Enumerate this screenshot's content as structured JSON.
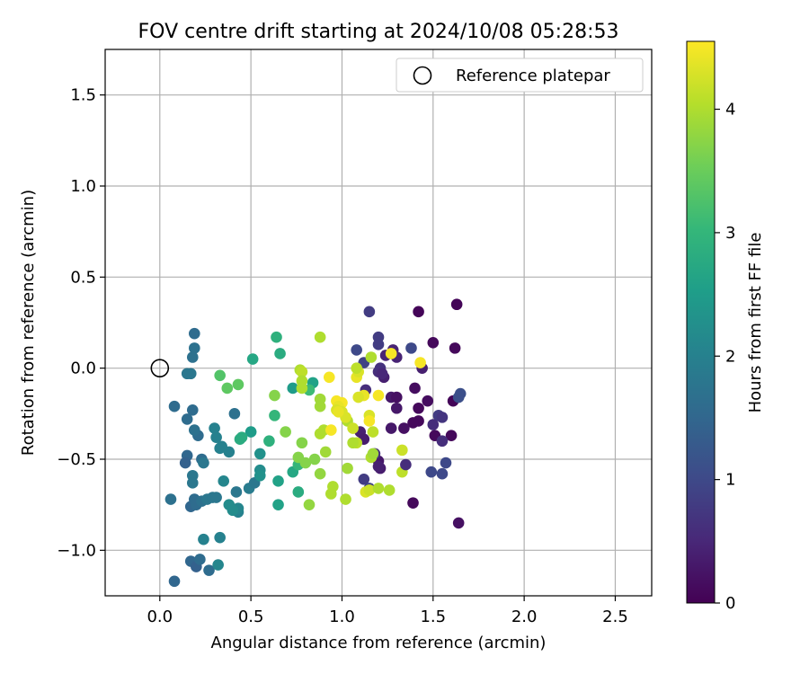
{
  "chart_data": {
    "type": "scatter",
    "title": "FOV centre drift starting at 2024/10/08 05:28:53",
    "xlabel": "Angular distance from reference (arcmin)",
    "ylabel": "Rotation from reference (arcmin)",
    "xlim": [
      -0.3,
      2.7
    ],
    "ylim": [
      -1.25,
      1.75
    ],
    "xticks": [
      0.0,
      0.5,
      1.0,
      1.5,
      2.0,
      2.5
    ],
    "xtick_labels": [
      "0.0",
      "0.5",
      "1.0",
      "1.5",
      "2.0",
      "2.5"
    ],
    "yticks": [
      -1.0,
      -0.5,
      0.0,
      0.5,
      1.0,
      1.5
    ],
    "ytick_labels": [
      "−1.0",
      "−0.5",
      "0.0",
      "0.5",
      "1.0",
      "1.5"
    ],
    "grid": true,
    "legend": {
      "placement": "top-right",
      "entries": [
        {
          "label": "Reference platepar",
          "marker": "open-circle"
        }
      ]
    },
    "reference_point": {
      "x": 0.0,
      "y": 0.0
    },
    "colorbar": {
      "label": "Hours from first FF file",
      "colormap": "viridis",
      "range": [
        0,
        4.55
      ],
      "ticks": [
        0,
        1,
        2,
        3,
        4
      ],
      "tick_labels": [
        "0",
        "1",
        "2",
        "3",
        "4"
      ]
    },
    "colormap_stops": [
      "#440154",
      "#482878",
      "#3e4a89",
      "#31688e",
      "#26828e",
      "#1f9e89",
      "#35b779",
      "#6ece58",
      "#b5de2b",
      "#fde725"
    ],
    "points": [
      {
        "x": 1.42,
        "y": 0.31,
        "c": 0.05
      },
      {
        "x": 1.63,
        "y": 0.35,
        "c": 0.05
      },
      {
        "x": 1.5,
        "y": 0.14,
        "c": 0.1
      },
      {
        "x": 1.62,
        "y": 0.11,
        "c": 0.1
      },
      {
        "x": 1.4,
        "y": -0.11,
        "c": 0.15
      },
      {
        "x": 1.42,
        "y": -0.22,
        "c": 0.1
      },
      {
        "x": 1.42,
        "y": -0.29,
        "c": 0.1
      },
      {
        "x": 1.39,
        "y": -0.3,
        "c": 0.1
      },
      {
        "x": 1.47,
        "y": -0.18,
        "c": 0.15
      },
      {
        "x": 1.51,
        "y": -0.37,
        "c": 0.1
      },
      {
        "x": 1.6,
        "y": -0.37,
        "c": 0.1
      },
      {
        "x": 1.61,
        "y": -0.18,
        "c": 0.05
      },
      {
        "x": 1.39,
        "y": -0.74,
        "c": 0.1
      },
      {
        "x": 1.64,
        "y": -0.85,
        "c": 0.2
      },
      {
        "x": 1.34,
        "y": -0.33,
        "c": 0.2
      },
      {
        "x": 1.3,
        "y": -0.22,
        "c": 0.3
      },
      {
        "x": 1.27,
        "y": -0.16,
        "c": 0.3
      },
      {
        "x": 1.3,
        "y": -0.16,
        "c": 0.2
      },
      {
        "x": 1.27,
        "y": -0.33,
        "c": 0.3
      },
      {
        "x": 1.2,
        "y": -0.51,
        "c": 0.3
      },
      {
        "x": 1.21,
        "y": -0.55,
        "c": 0.35
      },
      {
        "x": 1.1,
        "y": -0.35,
        "c": 0.4
      },
      {
        "x": 1.12,
        "y": -0.39,
        "c": 0.35
      },
      {
        "x": 1.23,
        "y": -0.05,
        "c": 0.4
      },
      {
        "x": 1.24,
        "y": 0.07,
        "c": 0.45
      },
      {
        "x": 1.28,
        "y": 0.1,
        "c": 0.45
      },
      {
        "x": 1.3,
        "y": 0.06,
        "c": 0.45
      },
      {
        "x": 1.44,
        "y": 0.0,
        "c": 0.4
      },
      {
        "x": 1.2,
        "y": -0.02,
        "c": 0.6
      },
      {
        "x": 1.21,
        "y": 0.0,
        "c": 0.65
      },
      {
        "x": 1.22,
        "y": -0.03,
        "c": 0.5
      },
      {
        "x": 1.13,
        "y": -0.12,
        "c": 0.6
      },
      {
        "x": 1.15,
        "y": 0.31,
        "c": 0.8
      },
      {
        "x": 1.2,
        "y": 0.17,
        "c": 0.8
      },
      {
        "x": 1.2,
        "y": 0.13,
        "c": 0.8
      },
      {
        "x": 1.08,
        "y": 0.1,
        "c": 1.0
      },
      {
        "x": 1.12,
        "y": 0.03,
        "c": 0.9
      },
      {
        "x": 1.38,
        "y": 0.11,
        "c": 1.0
      },
      {
        "x": 1.53,
        "y": -0.26,
        "c": 0.8
      },
      {
        "x": 1.55,
        "y": -0.27,
        "c": 0.7
      },
      {
        "x": 1.5,
        "y": -0.31,
        "c": 0.6
      },
      {
        "x": 1.55,
        "y": -0.4,
        "c": 0.6
      },
      {
        "x": 1.57,
        "y": -0.52,
        "c": 1.0
      },
      {
        "x": 1.55,
        "y": -0.58,
        "c": 1.0
      },
      {
        "x": 1.49,
        "y": -0.57,
        "c": 1.0
      },
      {
        "x": 1.65,
        "y": -0.14,
        "c": 1.1
      },
      {
        "x": 1.64,
        "y": -0.16,
        "c": 1.1
      },
      {
        "x": 1.18,
        "y": -0.47,
        "c": 0.6
      },
      {
        "x": 1.12,
        "y": -0.61,
        "c": 0.8
      },
      {
        "x": 1.15,
        "y": -0.66,
        "c": 0.9
      },
      {
        "x": 0.19,
        "y": 0.19,
        "c": 1.6
      },
      {
        "x": 0.19,
        "y": 0.11,
        "c": 1.7
      },
      {
        "x": 0.18,
        "y": 0.06,
        "c": 1.7
      },
      {
        "x": 0.17,
        "y": -0.03,
        "c": 1.8
      },
      {
        "x": 0.15,
        "y": -0.03,
        "c": 1.8
      },
      {
        "x": 0.08,
        "y": -0.21,
        "c": 1.6
      },
      {
        "x": 0.18,
        "y": -0.23,
        "c": 1.6
      },
      {
        "x": 0.15,
        "y": -0.28,
        "c": 1.6
      },
      {
        "x": 0.21,
        "y": -0.37,
        "c": 1.6
      },
      {
        "x": 0.19,
        "y": -0.34,
        "c": 1.7
      },
      {
        "x": 0.15,
        "y": -0.48,
        "c": 1.5
      },
      {
        "x": 0.14,
        "y": -0.52,
        "c": 1.4
      },
      {
        "x": 0.23,
        "y": -0.5,
        "c": 1.6
      },
      {
        "x": 0.24,
        "y": -0.52,
        "c": 1.8
      },
      {
        "x": 0.18,
        "y": -0.59,
        "c": 1.8
      },
      {
        "x": 0.18,
        "y": -0.63,
        "c": 1.8
      },
      {
        "x": 0.06,
        "y": -0.72,
        "c": 1.7
      },
      {
        "x": 0.17,
        "y": -0.76,
        "c": 1.5
      },
      {
        "x": 0.19,
        "y": -0.72,
        "c": 1.6
      },
      {
        "x": 0.2,
        "y": -0.75,
        "c": 1.6
      },
      {
        "x": 0.23,
        "y": -0.73,
        "c": 1.7
      },
      {
        "x": 0.26,
        "y": -0.72,
        "c": 1.8
      },
      {
        "x": 0.29,
        "y": -0.71,
        "c": 1.8
      },
      {
        "x": 0.31,
        "y": -0.71,
        "c": 1.8
      },
      {
        "x": 0.17,
        "y": -1.06,
        "c": 1.5
      },
      {
        "x": 0.2,
        "y": -1.09,
        "c": 1.4
      },
      {
        "x": 0.22,
        "y": -1.05,
        "c": 1.6
      },
      {
        "x": 0.27,
        "y": -1.11,
        "c": 1.6
      },
      {
        "x": 0.08,
        "y": -1.17,
        "c": 1.5
      },
      {
        "x": 0.24,
        "y": -0.94,
        "c": 2.0
      },
      {
        "x": 0.33,
        "y": -0.93,
        "c": 2.0
      },
      {
        "x": 0.32,
        "y": -1.08,
        "c": 2.1
      },
      {
        "x": 0.3,
        "y": -0.33,
        "c": 2.0
      },
      {
        "x": 0.31,
        "y": -0.38,
        "c": 2.0
      },
      {
        "x": 0.33,
        "y": -0.44,
        "c": 2.0
      },
      {
        "x": 0.34,
        "y": -0.43,
        "c": 2.0
      },
      {
        "x": 0.38,
        "y": -0.46,
        "c": 2.0
      },
      {
        "x": 0.41,
        "y": -0.25,
        "c": 1.7
      },
      {
        "x": 0.35,
        "y": -0.62,
        "c": 2.1
      },
      {
        "x": 0.38,
        "y": -0.75,
        "c": 2.2
      },
      {
        "x": 0.42,
        "y": -0.68,
        "c": 1.8
      },
      {
        "x": 0.43,
        "y": -0.79,
        "c": 2.0
      },
      {
        "x": 0.43,
        "y": -0.77,
        "c": 2.1
      },
      {
        "x": 0.4,
        "y": -0.78,
        "c": 2.2
      },
      {
        "x": 0.49,
        "y": -0.66,
        "c": 1.9
      },
      {
        "x": 0.52,
        "y": -0.63,
        "c": 1.8
      },
      {
        "x": 0.55,
        "y": -0.56,
        "c": 2.2
      },
      {
        "x": 0.55,
        "y": -0.59,
        "c": 2.3
      },
      {
        "x": 0.55,
        "y": -0.47,
        "c": 2.3
      },
      {
        "x": 0.5,
        "y": -0.35,
        "c": 2.5
      },
      {
        "x": 0.44,
        "y": -0.39,
        "c": 2.8
      },
      {
        "x": 0.45,
        "y": -0.38,
        "c": 2.8
      },
      {
        "x": 0.51,
        "y": 0.05,
        "c": 2.7
      },
      {
        "x": 0.64,
        "y": 0.17,
        "c": 2.9
      },
      {
        "x": 0.66,
        "y": 0.08,
        "c": 2.8
      },
      {
        "x": 0.73,
        "y": -0.11,
        "c": 2.5
      },
      {
        "x": 0.65,
        "y": -0.62,
        "c": 2.6
      },
      {
        "x": 0.65,
        "y": -0.75,
        "c": 2.6
      },
      {
        "x": 0.73,
        "y": -0.57,
        "c": 2.7
      },
      {
        "x": 0.76,
        "y": -0.68,
        "c": 2.8
      },
      {
        "x": 0.63,
        "y": -0.26,
        "c": 3.0
      },
      {
        "x": 0.6,
        "y": -0.4,
        "c": 2.9
      },
      {
        "x": 0.76,
        "y": -0.53,
        "c": 3.0
      },
      {
        "x": 0.84,
        "y": -0.08,
        "c": 2.6
      },
      {
        "x": 0.82,
        "y": -0.12,
        "c": 3.1
      },
      {
        "x": 0.33,
        "y": -0.04,
        "c": 3.3
      },
      {
        "x": 0.37,
        "y": -0.11,
        "c": 3.4
      },
      {
        "x": 0.43,
        "y": -0.09,
        "c": 3.4
      },
      {
        "x": 0.63,
        "y": -0.15,
        "c": 3.7
      },
      {
        "x": 0.69,
        "y": -0.35,
        "c": 3.7
      },
      {
        "x": 0.76,
        "y": -0.49,
        "c": 3.7
      },
      {
        "x": 0.78,
        "y": -0.41,
        "c": 3.7
      },
      {
        "x": 0.8,
        "y": -0.52,
        "c": 3.7
      },
      {
        "x": 0.82,
        "y": -0.75,
        "c": 3.8
      },
      {
        "x": 0.85,
        "y": -0.5,
        "c": 3.7
      },
      {
        "x": 0.88,
        "y": -0.58,
        "c": 3.8
      },
      {
        "x": 0.88,
        "y": -0.36,
        "c": 4.0
      },
      {
        "x": 0.88,
        "y": -0.17,
        "c": 3.9
      },
      {
        "x": 0.88,
        "y": -0.21,
        "c": 3.9
      },
      {
        "x": 0.9,
        "y": -0.34,
        "c": 4.0
      },
      {
        "x": 0.91,
        "y": -0.46,
        "c": 3.9
      },
      {
        "x": 0.88,
        "y": 0.17,
        "c": 4.0
      },
      {
        "x": 0.77,
        "y": -0.01,
        "c": 4.0
      },
      {
        "x": 0.78,
        "y": -0.02,
        "c": 4.1
      },
      {
        "x": 0.78,
        "y": -0.07,
        "c": 4.0
      },
      {
        "x": 0.78,
        "y": -0.11,
        "c": 4.0
      },
      {
        "x": 0.94,
        "y": -0.69,
        "c": 4.0
      },
      {
        "x": 0.95,
        "y": -0.65,
        "c": 4.0
      },
      {
        "x": 1.02,
        "y": -0.72,
        "c": 4.0
      },
      {
        "x": 1.03,
        "y": -0.55,
        "c": 3.9
      },
      {
        "x": 1.03,
        "y": -0.29,
        "c": 4.0
      },
      {
        "x": 1.06,
        "y": -0.33,
        "c": 4.2
      },
      {
        "x": 1.08,
        "y": -0.41,
        "c": 4.1
      },
      {
        "x": 1.16,
        "y": -0.49,
        "c": 4.0
      },
      {
        "x": 1.13,
        "y": -0.68,
        "c": 4.3
      },
      {
        "x": 1.15,
        "y": -0.67,
        "c": 4.2
      },
      {
        "x": 1.2,
        "y": -0.66,
        "c": 4.0
      },
      {
        "x": 1.26,
        "y": -0.67,
        "c": 4.0
      },
      {
        "x": 1.33,
        "y": -0.57,
        "c": 4.1
      },
      {
        "x": 1.33,
        "y": -0.45,
        "c": 4.2
      },
      {
        "x": 1.17,
        "y": -0.35,
        "c": 4.1
      },
      {
        "x": 1.15,
        "y": -0.26,
        "c": 4.3
      },
      {
        "x": 1.15,
        "y": -0.29,
        "c": 4.5
      },
      {
        "x": 1.12,
        "y": -0.15,
        "c": 4.4
      },
      {
        "x": 1.09,
        "y": -0.16,
        "c": 4.3
      },
      {
        "x": 1.08,
        "y": -0.05,
        "c": 4.4
      },
      {
        "x": 1.09,
        "y": -0.02,
        "c": 4.3
      },
      {
        "x": 1.08,
        "y": 0.0,
        "c": 4.1
      },
      {
        "x": 1.16,
        "y": 0.06,
        "c": 4.0
      },
      {
        "x": 1.2,
        "y": -0.15,
        "c": 4.5
      },
      {
        "x": 1.27,
        "y": 0.08,
        "c": 4.5
      },
      {
        "x": 1.43,
        "y": 0.03,
        "c": 4.5
      },
      {
        "x": 1.0,
        "y": -0.19,
        "c": 4.5
      },
      {
        "x": 0.97,
        "y": -0.18,
        "c": 4.5
      },
      {
        "x": 0.98,
        "y": -0.21,
        "c": 4.4
      },
      {
        "x": 0.97,
        "y": -0.23,
        "c": 4.3
      },
      {
        "x": 1.0,
        "y": -0.24,
        "c": 4.3
      },
      {
        "x": 1.02,
        "y": -0.27,
        "c": 4.3
      },
      {
        "x": 0.94,
        "y": -0.34,
        "c": 4.5
      },
      {
        "x": 0.93,
        "y": -0.05,
        "c": 4.5
      },
      {
        "x": 1.17,
        "y": -0.47,
        "c": 3.9
      },
      {
        "x": 1.06,
        "y": -0.41,
        "c": 4.0
      },
      {
        "x": 1.2,
        "y": -0.54,
        "c": 0.4
      },
      {
        "x": 1.35,
        "y": -0.53,
        "c": 0.6
      },
      {
        "x": 0.98,
        "y": -0.24,
        "c": 4.4
      }
    ]
  }
}
